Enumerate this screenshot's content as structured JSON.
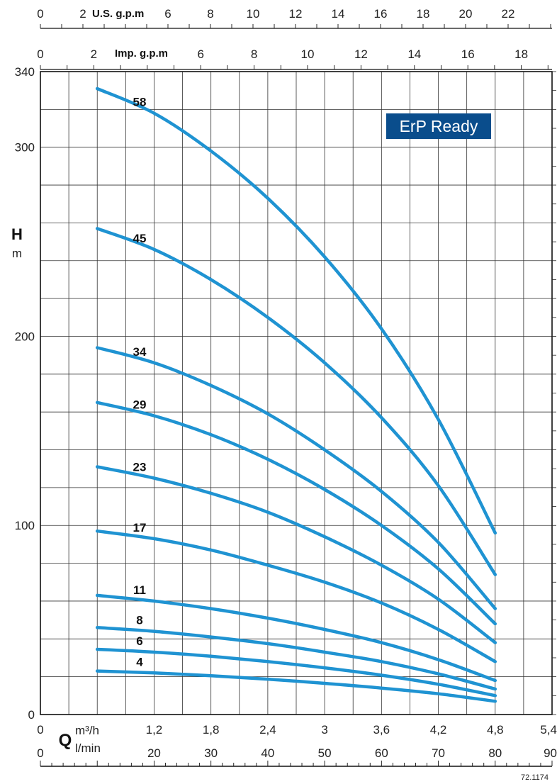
{
  "chart_data": {
    "type": "line",
    "title": "",
    "badge": "ErP Ready",
    "reference": "72.1174",
    "y_axis": {
      "label": "H",
      "unit": "m",
      "range": [
        0,
        340
      ],
      "ticks": [
        0,
        100,
        200,
        300,
        340
      ]
    },
    "x_axis_m3h": {
      "label": "Q",
      "unit": "m³/h",
      "range": [
        0,
        5.4
      ],
      "ticks": [
        "0",
        "1,2",
        "1,8",
        "2,4",
        "3",
        "3,6",
        "4,2",
        "4,8",
        "5,4"
      ],
      "tick_values": [
        0,
        1.2,
        1.8,
        2.4,
        3.0,
        3.6,
        4.2,
        4.8,
        5.4
      ]
    },
    "x_axis_lmin": {
      "unit": "l/min",
      "range": [
        0,
        90
      ],
      "ticks": [
        "0",
        "20",
        "30",
        "40",
        "50",
        "60",
        "70",
        "80",
        "90"
      ],
      "tick_values": [
        0,
        20,
        30,
        40,
        50,
        60,
        70,
        80,
        90
      ]
    },
    "x_axis_impgpm": {
      "label": "Imp. g.p.m",
      "ticks": [
        "0",
        "2",
        "6",
        "8",
        "10",
        "12",
        "14",
        "16",
        "18"
      ],
      "tick_values": [
        0,
        2,
        6,
        8,
        10,
        12,
        14,
        16,
        18
      ]
    },
    "x_axis_usgpm": {
      "label": "U.S. g.p.m",
      "ticks": [
        "0",
        "2",
        "6",
        "8",
        "10",
        "12",
        "14",
        "16",
        "18",
        "20",
        "22"
      ],
      "tick_values": [
        0,
        2,
        6,
        8,
        10,
        12,
        14,
        16,
        18,
        20,
        22
      ]
    },
    "grid": true,
    "series": [
      {
        "name": "58",
        "x": [
          0.6,
          1.2,
          1.8,
          2.4,
          3.0,
          3.6,
          4.2,
          4.8
        ],
        "y": [
          331,
          318,
          298,
          273,
          242,
          204,
          156,
          96
        ]
      },
      {
        "name": "45",
        "x": [
          0.6,
          1.2,
          1.8,
          2.4,
          3.0,
          3.6,
          4.2,
          4.8
        ],
        "y": [
          257,
          246,
          230,
          210,
          186,
          157,
          121,
          74
        ]
      },
      {
        "name": "34",
        "x": [
          0.6,
          1.2,
          1.8,
          2.4,
          3.0,
          3.6,
          4.2,
          4.8
        ],
        "y": [
          194,
          186,
          174,
          159,
          140,
          118,
          91,
          56
        ]
      },
      {
        "name": "29",
        "x": [
          0.6,
          1.2,
          1.8,
          2.4,
          3.0,
          3.6,
          4.2,
          4.8
        ],
        "y": [
          165,
          158,
          148,
          135,
          119,
          100,
          77,
          48
        ]
      },
      {
        "name": "23",
        "x": [
          0.6,
          1.2,
          1.8,
          2.4,
          3.0,
          3.6,
          4.2,
          4.8
        ],
        "y": [
          131,
          125,
          117,
          107,
          94,
          79,
          61,
          38
        ]
      },
      {
        "name": "17",
        "x": [
          0.6,
          1.2,
          1.8,
          2.4,
          3.0,
          3.6,
          4.2,
          4.8
        ],
        "y": [
          97,
          93,
          87,
          79,
          70,
          59,
          45,
          28
        ]
      },
      {
        "name": "11",
        "x": [
          0.6,
          1.2,
          1.8,
          2.4,
          3.0,
          3.6,
          4.2,
          4.8
        ],
        "y": [
          63,
          60,
          56,
          51,
          45,
          38,
          29,
          18
        ]
      },
      {
        "name": "8",
        "x": [
          0.6,
          1.2,
          1.8,
          2.4,
          3.0,
          3.6,
          4.2,
          4.8
        ],
        "y": [
          46,
          44,
          41,
          37.5,
          33,
          28,
          21.5,
          13.5
        ]
      },
      {
        "name": "6",
        "x": [
          0.6,
          1.2,
          1.8,
          2.4,
          3.0,
          3.6,
          4.2,
          4.8
        ],
        "y": [
          34.5,
          33,
          30.8,
          28,
          24.7,
          20.8,
          16,
          10
        ]
      },
      {
        "name": "4",
        "x": [
          0.6,
          1.2,
          1.8,
          2.4,
          3.0,
          3.6,
          4.2,
          4.8
        ],
        "y": [
          23,
          22,
          20.5,
          18.7,
          16.5,
          14,
          11,
          7
        ]
      }
    ],
    "colors": {
      "curve": "#1f93d2",
      "badge": "#0a4d8c",
      "grid": "#222222"
    }
  }
}
